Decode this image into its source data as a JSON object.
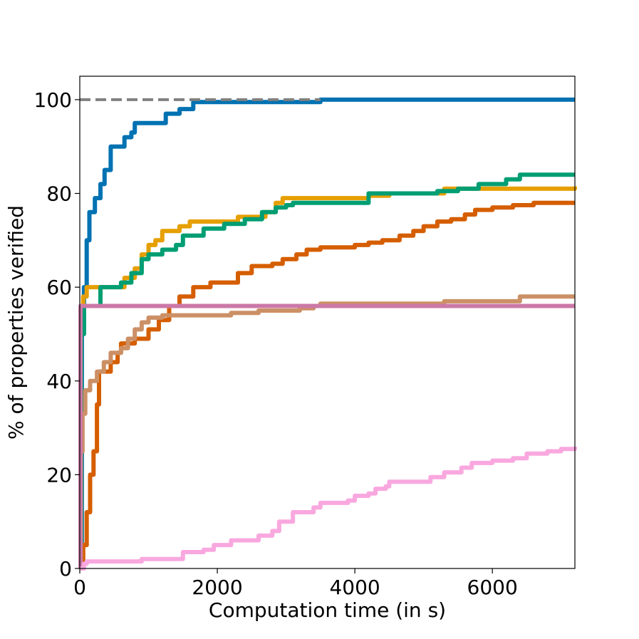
{
  "chart_data": {
    "type": "line",
    "xlabel": "Computation time (in s)",
    "ylabel": "% of properties verified",
    "xlim": [
      0,
      7200
    ],
    "ylim": [
      0,
      105
    ],
    "x_ticks": [
      0,
      2000,
      4000,
      6000
    ],
    "y_ticks": [
      0,
      20,
      40,
      60,
      80,
      100
    ],
    "x_tick_labels": [
      "0",
      "2000",
      "4000",
      "6000"
    ],
    "y_tick_labels": [
      "0",
      "20",
      "40",
      "60",
      "80",
      "100"
    ],
    "grid": false,
    "legend": "none",
    "reference_line": {
      "y": 100,
      "x_end": 3500,
      "color": "#808080",
      "style": "dashed"
    },
    "series": [
      {
        "color": "#0072b2",
        "points": [
          [
            0,
            0
          ],
          [
            30,
            50
          ],
          [
            60,
            60
          ],
          [
            100,
            70
          ],
          [
            140,
            76
          ],
          [
            220,
            79
          ],
          [
            300,
            82
          ],
          [
            360,
            85
          ],
          [
            450,
            90
          ],
          [
            600,
            90
          ],
          [
            650,
            92
          ],
          [
            750,
            93
          ],
          [
            800,
            95
          ],
          [
            1100,
            95
          ],
          [
            1250,
            97
          ],
          [
            1450,
            98
          ],
          [
            1650,
            99.5
          ],
          [
            3500,
            99.5
          ],
          [
            3500,
            100
          ],
          [
            7200,
            100
          ]
        ]
      },
      {
        "color": "#e69f00",
        "points": [
          [
            0,
            0
          ],
          [
            20,
            50
          ],
          [
            50,
            58
          ],
          [
            100,
            60
          ],
          [
            550,
            60
          ],
          [
            650,
            62
          ],
          [
            800,
            64
          ],
          [
            900,
            67
          ],
          [
            1000,
            69
          ],
          [
            1100,
            70
          ],
          [
            1200,
            72
          ],
          [
            1450,
            73
          ],
          [
            1600,
            74
          ],
          [
            2100,
            74
          ],
          [
            2300,
            75
          ],
          [
            2700,
            76
          ],
          [
            2850,
            78
          ],
          [
            2950,
            79
          ],
          [
            3500,
            79
          ],
          [
            4200,
            79.5
          ],
          [
            4500,
            80
          ],
          [
            5300,
            81
          ],
          [
            7200,
            81.5
          ]
        ]
      },
      {
        "color": "#009e73",
        "points": [
          [
            0,
            0
          ],
          [
            20,
            50
          ],
          [
            60,
            56
          ],
          [
            250,
            56
          ],
          [
            300,
            60
          ],
          [
            600,
            61
          ],
          [
            750,
            63
          ],
          [
            900,
            66
          ],
          [
            1000,
            67
          ],
          [
            1200,
            68
          ],
          [
            1400,
            69
          ],
          [
            1500,
            71
          ],
          [
            1800,
            72.5
          ],
          [
            2100,
            73.5
          ],
          [
            2400,
            74.5
          ],
          [
            2650,
            76
          ],
          [
            2850,
            77
          ],
          [
            3000,
            77.5
          ],
          [
            3100,
            78
          ],
          [
            4150,
            78
          ],
          [
            4200,
            80
          ],
          [
            5200,
            80.5
          ],
          [
            5500,
            81
          ],
          [
            5800,
            82
          ],
          [
            6200,
            83
          ],
          [
            6400,
            84
          ],
          [
            7200,
            84
          ]
        ]
      },
      {
        "color": "#d55e00",
        "points": [
          [
            0,
            0
          ],
          [
            50,
            5
          ],
          [
            100,
            12
          ],
          [
            150,
            20
          ],
          [
            200,
            25
          ],
          [
            250,
            35
          ],
          [
            280,
            42
          ],
          [
            450,
            44
          ],
          [
            550,
            46
          ],
          [
            600,
            48
          ],
          [
            800,
            49
          ],
          [
            1000,
            51
          ],
          [
            1150,
            53
          ],
          [
            1300,
            56
          ],
          [
            1450,
            58
          ],
          [
            1650,
            60
          ],
          [
            1900,
            61
          ],
          [
            2300,
            63
          ],
          [
            2500,
            64.5
          ],
          [
            2800,
            65
          ],
          [
            2950,
            66
          ],
          [
            3150,
            67
          ],
          [
            3300,
            68
          ],
          [
            3500,
            68.5
          ],
          [
            4000,
            69
          ],
          [
            4200,
            69.5
          ],
          [
            4400,
            70
          ],
          [
            4650,
            71
          ],
          [
            4850,
            72
          ],
          [
            5000,
            73
          ],
          [
            5200,
            74
          ],
          [
            5400,
            74.5
          ],
          [
            5600,
            75.5
          ],
          [
            5750,
            76.5
          ],
          [
            6000,
            77
          ],
          [
            6300,
            77.5
          ],
          [
            6600,
            78
          ],
          [
            7200,
            78
          ]
        ]
      },
      {
        "color": "#cc9066",
        "points": [
          [
            0,
            0
          ],
          [
            15,
            25
          ],
          [
            40,
            33
          ],
          [
            80,
            38
          ],
          [
            150,
            40
          ],
          [
            250,
            42
          ],
          [
            350,
            44
          ],
          [
            450,
            46
          ],
          [
            600,
            47
          ],
          [
            700,
            49
          ],
          [
            800,
            51
          ],
          [
            900,
            52.5
          ],
          [
            1000,
            53.5
          ],
          [
            1200,
            54
          ],
          [
            2200,
            54.5
          ],
          [
            2600,
            55
          ],
          [
            3200,
            55.5
          ],
          [
            3400,
            56
          ],
          [
            3500,
            56.5
          ],
          [
            4500,
            56.5
          ],
          [
            5300,
            57
          ],
          [
            6400,
            58
          ],
          [
            7200,
            58
          ]
        ]
      },
      {
        "color": "#cc79a7",
        "points": [
          [
            0,
            0
          ],
          [
            10,
            56
          ],
          [
            7200,
            56
          ]
        ]
      },
      {
        "color": "#f9a8df",
        "points": [
          [
            0,
            0
          ],
          [
            60,
            1
          ],
          [
            100,
            1.5
          ],
          [
            800,
            1.5
          ],
          [
            900,
            2
          ],
          [
            1400,
            2
          ],
          [
            1500,
            3.5
          ],
          [
            1800,
            4
          ],
          [
            1950,
            5
          ],
          [
            2200,
            6
          ],
          [
            2600,
            7
          ],
          [
            2800,
            8
          ],
          [
            2900,
            10
          ],
          [
            3100,
            12
          ],
          [
            3400,
            13
          ],
          [
            3500,
            14
          ],
          [
            3900,
            14.5
          ],
          [
            4000,
            15.5
          ],
          [
            4200,
            16
          ],
          [
            4300,
            17
          ],
          [
            4450,
            17.5
          ],
          [
            4500,
            18.5
          ],
          [
            5000,
            18.5
          ],
          [
            5100,
            19.5
          ],
          [
            5300,
            20.5
          ],
          [
            5550,
            21.5
          ],
          [
            5700,
            22.5
          ],
          [
            6000,
            23
          ],
          [
            6300,
            23.5
          ],
          [
            6500,
            24.5
          ],
          [
            6800,
            25
          ],
          [
            7000,
            25.5
          ],
          [
            7200,
            26
          ]
        ]
      }
    ]
  }
}
